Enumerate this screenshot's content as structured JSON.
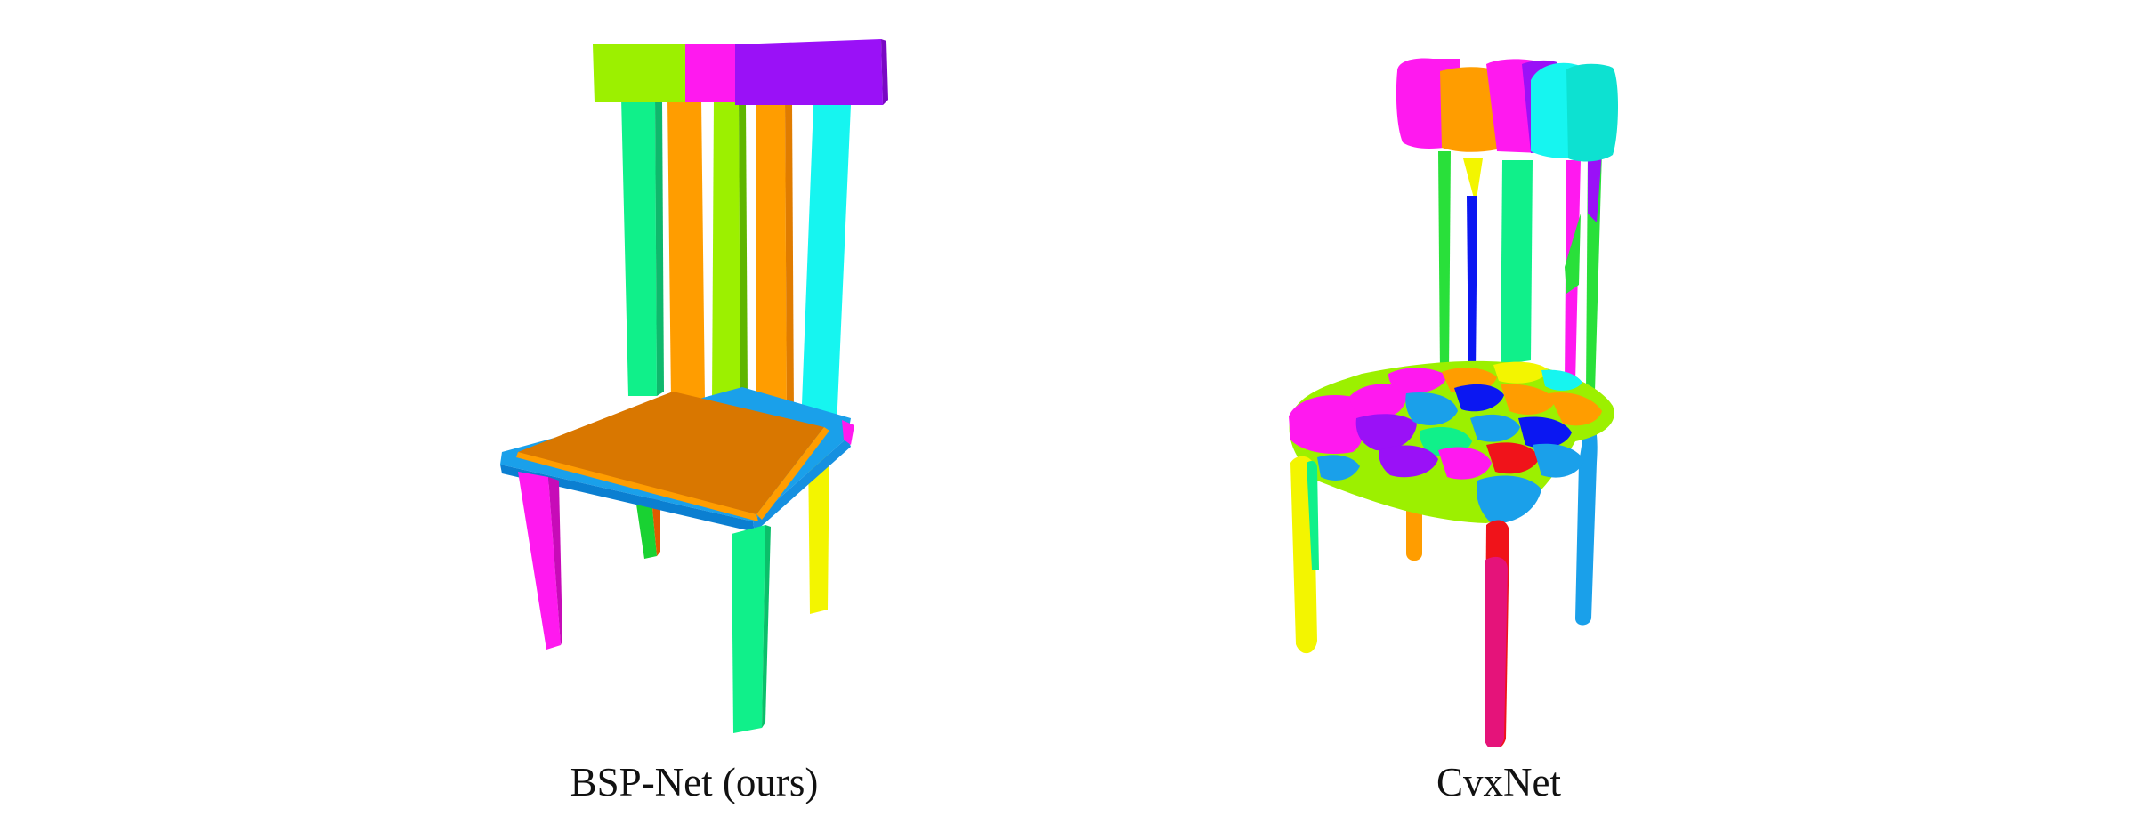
{
  "captions": {
    "left": "BSP-Net (ours)",
    "right": "CvxNet"
  },
  "palette": {
    "magenta": "#ff19ef",
    "green": "#10f08a",
    "orange": "#ff9d00",
    "lime": "#9cf000",
    "cyan": "#16f5f0",
    "purple": "#9a11f7",
    "blue": "#1aa0ea",
    "seat": "#d97700",
    "yellow": "#f3f500",
    "red": "#f0131a",
    "pure_blue": "#0b17f2",
    "teal": "#0de1d1"
  }
}
